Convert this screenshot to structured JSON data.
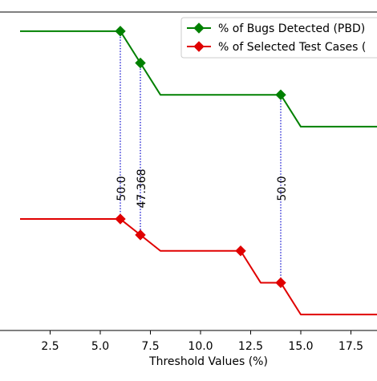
{
  "chart_data": {
    "type": "line",
    "title": "",
    "xlabel": "Threshold Values (%)",
    "ylabel": "",
    "xlim": [
      0,
      18.8
    ],
    "ylim": [
      0,
      100
    ],
    "grid": false,
    "legend_position": "top-right",
    "x_ticks": [
      2.5,
      5.0,
      7.5,
      10.0,
      12.5,
      15.0,
      17.5
    ],
    "x_tick_labels": [
      "2.5",
      "5.0",
      "7.5",
      "10.0",
      "12.5",
      "15.0",
      "17.5"
    ],
    "series": [
      {
        "name": "% of Bugs Detected (PBD)",
        "color": "#008000",
        "marker": "diamond",
        "points": [
          {
            "x": 1,
            "y": 94
          },
          {
            "x": 6,
            "y": 94
          },
          {
            "x": 7,
            "y": 84
          },
          {
            "x": 8,
            "y": 74
          },
          {
            "x": 14,
            "y": 74
          },
          {
            "x": 15,
            "y": 64
          },
          {
            "x": 18.8,
            "y": 64
          }
        ],
        "marker_x": [
          6,
          7,
          14
        ]
      },
      {
        "name": "% of Selected Test Cases (",
        "color": "#e00000",
        "marker": "diamond",
        "points": [
          {
            "x": 1,
            "y": 35
          },
          {
            "x": 6,
            "y": 35
          },
          {
            "x": 7,
            "y": 30
          },
          {
            "x": 8,
            "y": 25
          },
          {
            "x": 12,
            "y": 25
          },
          {
            "x": 13,
            "y": 15
          },
          {
            "x": 14,
            "y": 15
          },
          {
            "x": 15,
            "y": 5
          },
          {
            "x": 18.8,
            "y": 5
          }
        ],
        "marker_x": [
          6,
          7,
          12,
          14
        ]
      }
    ],
    "annotations": [
      {
        "x": 6,
        "label": "50.0",
        "line_color": "#0000cc"
      },
      {
        "x": 7,
        "label": "47.368",
        "line_color": "#0000cc"
      },
      {
        "x": 14,
        "label": "50.0",
        "line_color": "#0000cc"
      }
    ]
  }
}
